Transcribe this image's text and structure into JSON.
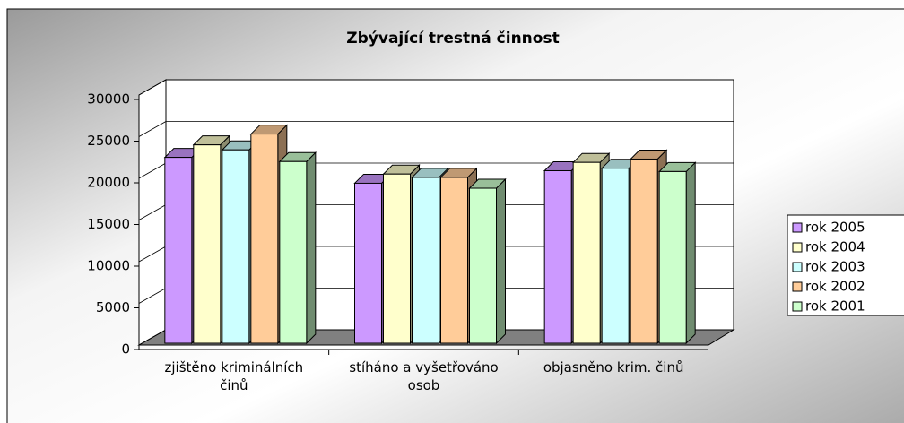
{
  "chart_data": {
    "type": "bar3d",
    "title": "Zbývající trestná činnost",
    "categories": [
      "zjištěno kriminálních činů",
      "stíháno a vyšetřováno osob",
      "objasněno krim. činů"
    ],
    "series": [
      {
        "name": "rok 2005",
        "color": "#cc99ff",
        "values": [
          22300,
          19200,
          20700
        ]
      },
      {
        "name": "rok 2004",
        "color": "#ffffcc",
        "values": [
          23800,
          20300,
          21700
        ]
      },
      {
        "name": "rok 2003",
        "color": "#ccffff",
        "values": [
          23200,
          19900,
          21000
        ]
      },
      {
        "name": "rok 2002",
        "color": "#ffcc99",
        "values": [
          25100,
          19900,
          22100
        ]
      },
      {
        "name": "rok 2001",
        "color": "#ccffcc",
        "values": [
          21800,
          18600,
          20600
        ]
      }
    ],
    "ylim": [
      0,
      30000
    ],
    "yticks": [
      0,
      5000,
      10000,
      15000,
      20000,
      25000,
      30000
    ],
    "grid": true,
    "legend": "right"
  }
}
